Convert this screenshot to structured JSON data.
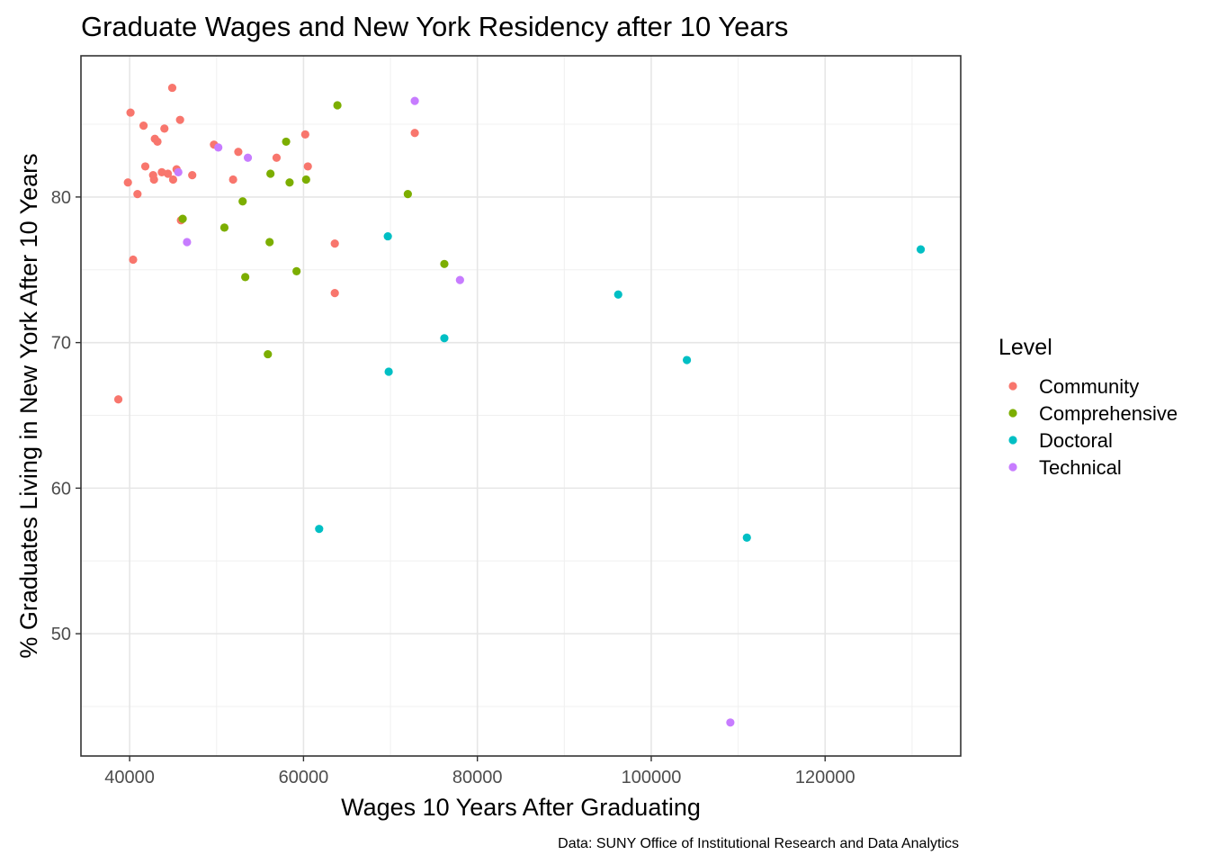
{
  "chart_data": {
    "type": "scatter",
    "title": "Graduate Wages and New York Residency after 10 Years",
    "xlabel": "Wages 10 Years After Graduating",
    "ylabel": "% Graduates Living in New York After 10 Years",
    "caption": "Data: SUNY Office of Institutional Research and Data Analytics",
    "xlim": [
      34400,
      135600
    ],
    "ylim": [
      41.6,
      89.7
    ],
    "x_ticks": [
      40000,
      60000,
      80000,
      100000,
      120000
    ],
    "x_tick_labels": [
      "40000",
      "60000",
      "80000",
      "100000",
      "120000"
    ],
    "y_ticks": [
      50,
      60,
      70,
      80
    ],
    "y_tick_labels": [
      "50",
      "60",
      "70",
      "80"
    ],
    "grid": true,
    "legend": {
      "title": "Level",
      "position": "right"
    },
    "series": [
      {
        "name": "Community",
        "color": "#F8766D",
        "points": [
          [
            38700,
            66.1
          ],
          [
            39800,
            81.0
          ],
          [
            40100,
            85.8
          ],
          [
            40400,
            75.7
          ],
          [
            40900,
            80.2
          ],
          [
            41600,
            84.9
          ],
          [
            41800,
            82.1
          ],
          [
            42700,
            81.5
          ],
          [
            42800,
            81.2
          ],
          [
            42900,
            84.0
          ],
          [
            43200,
            83.8
          ],
          [
            43700,
            81.7
          ],
          [
            44000,
            84.7
          ],
          [
            44400,
            81.6
          ],
          [
            44900,
            87.5
          ],
          [
            45000,
            81.2
          ],
          [
            45400,
            81.9
          ],
          [
            45800,
            85.3
          ],
          [
            45900,
            78.4
          ],
          [
            47200,
            81.5
          ],
          [
            49700,
            83.6
          ],
          [
            51900,
            81.2
          ],
          [
            52500,
            83.1
          ],
          [
            56900,
            82.7
          ],
          [
            60200,
            84.3
          ],
          [
            60500,
            82.1
          ],
          [
            63600,
            76.8
          ],
          [
            63600,
            73.4
          ],
          [
            72800,
            84.4
          ]
        ]
      },
      {
        "name": "Comprehensive",
        "color": "#7CAE00",
        "points": [
          [
            46100,
            78.5
          ],
          [
            50900,
            77.9
          ],
          [
            53000,
            79.7
          ],
          [
            53300,
            74.5
          ],
          [
            55900,
            69.2
          ],
          [
            56100,
            76.9
          ],
          [
            56200,
            81.6
          ],
          [
            58000,
            83.8
          ],
          [
            58400,
            81.0
          ],
          [
            59200,
            74.9
          ],
          [
            60300,
            81.2
          ],
          [
            63900,
            86.3
          ],
          [
            72000,
            80.2
          ],
          [
            76200,
            75.4
          ]
        ]
      },
      {
        "name": "Doctoral",
        "color": "#00BFC4",
        "points": [
          [
            61800,
            57.2
          ],
          [
            69700,
            77.3
          ],
          [
            69800,
            68.0
          ],
          [
            76200,
            70.3
          ],
          [
            96200,
            73.3
          ],
          [
            104100,
            68.8
          ],
          [
            111000,
            56.6
          ],
          [
            131000,
            76.4
          ]
        ]
      },
      {
        "name": "Technical",
        "color": "#C77CFF",
        "points": [
          [
            45600,
            81.7
          ],
          [
            46600,
            76.9
          ],
          [
            50200,
            83.4
          ],
          [
            53600,
            82.7
          ],
          [
            72800,
            86.6
          ],
          [
            78000,
            74.3
          ],
          [
            109100,
            43.9
          ]
        ]
      }
    ]
  }
}
